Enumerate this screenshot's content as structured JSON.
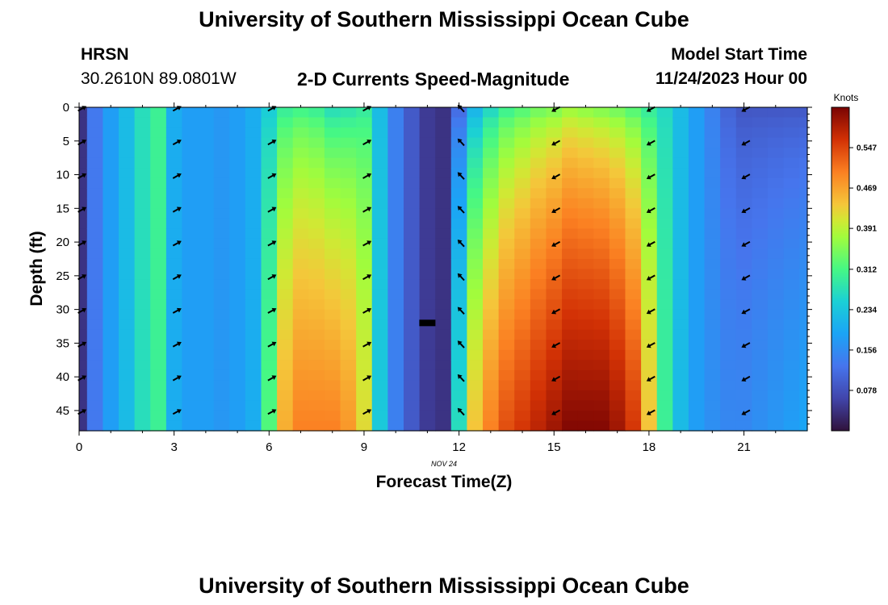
{
  "page": {
    "title": "University of Southern Mississippi Ocean Cube",
    "footer_title": "University of Southern Mississippi Ocean Cube",
    "station": "HRSN",
    "coords": "30.2610N  89.0801W",
    "subtitle": "2-D Currents Speed-Magnitude",
    "model_start_label": "Model Start Time",
    "model_start_value": "11/24/2023 Hour 00"
  },
  "chart_data": {
    "type": "heatmap",
    "title": "2-D Currents Speed-Magnitude",
    "xlabel": "Forecast Time(Z)",
    "ylabel": "Depth (ft)",
    "date_label": "NOV 24",
    "xlim": [
      0,
      23
    ],
    "ylim": [
      0,
      48
    ],
    "x_ticks": [
      0,
      3,
      6,
      9,
      12,
      15,
      18,
      21
    ],
    "y_ticks": [
      0,
      5,
      10,
      15,
      20,
      25,
      30,
      35,
      40,
      45
    ],
    "colorbar": {
      "label": "Knots",
      "min": 0.0,
      "max": 0.625,
      "ticks": [
        "0.547",
        "0.469",
        "0.391",
        "0.312",
        "0.234",
        "0.156",
        "0.078"
      ]
    },
    "hours": [
      0,
      0.5,
      1,
      1.5,
      2,
      2.5,
      3,
      3.5,
      4,
      4.5,
      5,
      5.5,
      6,
      6.5,
      7,
      7.5,
      8,
      8.5,
      9,
      9.5,
      10,
      10.5,
      11,
      11.5,
      12,
      12.5,
      13,
      13.5,
      14,
      14.5,
      15,
      15.5,
      16,
      16.5,
      17,
      17.5,
      18,
      18.5,
      19,
      19.5,
      20,
      20.5,
      21,
      21.5,
      22,
      22.5,
      23
    ],
    "speed_surface": [
      0.04,
      0.13,
      0.18,
      0.22,
      0.27,
      0.3,
      0.2,
      0.18,
      0.18,
      0.17,
      0.18,
      0.2,
      0.24,
      0.28,
      0.29,
      0.28,
      0.25,
      0.26,
      0.28,
      0.22,
      0.14,
      0.09,
      0.05,
      0.04,
      0.1,
      0.19,
      0.24,
      0.28,
      0.3,
      0.32,
      0.33,
      0.35,
      0.34,
      0.33,
      0.32,
      0.3,
      0.28,
      0.26,
      0.22,
      0.18,
      0.14,
      0.1,
      0.08,
      0.08,
      0.08,
      0.08,
      0.08
    ],
    "speed_bottom": [
      0.04,
      0.13,
      0.18,
      0.22,
      0.27,
      0.3,
      0.2,
      0.18,
      0.18,
      0.17,
      0.18,
      0.2,
      0.32,
      0.46,
      0.5,
      0.5,
      0.5,
      0.48,
      0.42,
      0.24,
      0.14,
      0.09,
      0.05,
      0.04,
      0.27,
      0.44,
      0.5,
      0.54,
      0.56,
      0.58,
      0.6,
      0.62,
      0.62,
      0.62,
      0.6,
      0.56,
      0.44,
      0.3,
      0.22,
      0.18,
      0.16,
      0.15,
      0.15,
      0.16,
      0.17,
      0.18,
      0.19
    ],
    "arrows": [
      {
        "hour": 0,
        "direction": "north-east"
      },
      {
        "hour": 3,
        "direction": "north-east"
      },
      {
        "hour": 6,
        "direction": "north-east"
      },
      {
        "hour": 9,
        "direction": "north-east"
      },
      {
        "hour": 12,
        "direction": "north-west"
      },
      {
        "hour": 15,
        "direction": "south-west"
      },
      {
        "hour": 18,
        "direction": "south-west"
      },
      {
        "hour": 21,
        "direction": "south-west"
      }
    ],
    "arrow_depths": [
      0,
      5,
      10,
      15,
      20,
      25,
      30,
      35,
      40,
      45
    ]
  }
}
